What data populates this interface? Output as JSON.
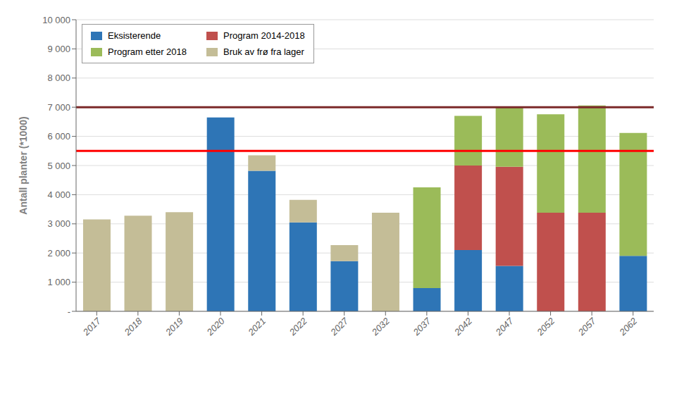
{
  "chart_data": {
    "type": "bar",
    "stacked": true,
    "ylabel": "Antall planter (*1000)",
    "categories": [
      "2017",
      "2018",
      "2019",
      "2020",
      "2021",
      "2022",
      "2027",
      "2032",
      "2037",
      "2042",
      "2047",
      "2052",
      "2057",
      "2062"
    ],
    "series": [
      {
        "name": "Eksisterende",
        "color": "#2E75B6",
        "values": [
          0,
          0,
          0,
          6650,
          4820,
          3050,
          1720,
          0,
          800,
          2100,
          1560,
          0,
          0,
          1900
        ]
      },
      {
        "name": "Program 2014-2018",
        "color": "#C0504D",
        "values": [
          0,
          0,
          0,
          0,
          0,
          0,
          0,
          0,
          0,
          2900,
          3400,
          3380,
          3380,
          0
        ]
      },
      {
        "name": "Program etter 2018",
        "color": "#9BBB59",
        "values": [
          0,
          0,
          0,
          0,
          0,
          0,
          0,
          0,
          3450,
          1700,
          2040,
          3380,
          3680,
          4220
        ]
      },
      {
        "name": "Bruk av frø fra lager",
        "color": "#C4BD97",
        "values": [
          3150,
          3280,
          3400,
          0,
          530,
          770,
          550,
          3380,
          0,
          0,
          0,
          0,
          0,
          0
        ]
      }
    ],
    "hlines": [
      {
        "y": 7000,
        "color": "#7B2929"
      },
      {
        "y": 5500,
        "color": "#FF0000"
      }
    ],
    "ylim": [
      0,
      10000
    ],
    "yticks": [
      {
        "value": 0,
        "label": "-"
      },
      {
        "value": 1000,
        "label": "1 000"
      },
      {
        "value": 2000,
        "label": "2 000"
      },
      {
        "value": 3000,
        "label": "3 000"
      },
      {
        "value": 4000,
        "label": "4 000"
      },
      {
        "value": 5000,
        "label": "5 000"
      },
      {
        "value": 6000,
        "label": "6 000"
      },
      {
        "value": 7000,
        "label": "7 000"
      },
      {
        "value": 8000,
        "label": "8 000"
      },
      {
        "value": 9000,
        "label": "9 000"
      },
      {
        "value": 10000,
        "label": "10 000"
      }
    ],
    "grid": true,
    "legend": "upper left"
  }
}
